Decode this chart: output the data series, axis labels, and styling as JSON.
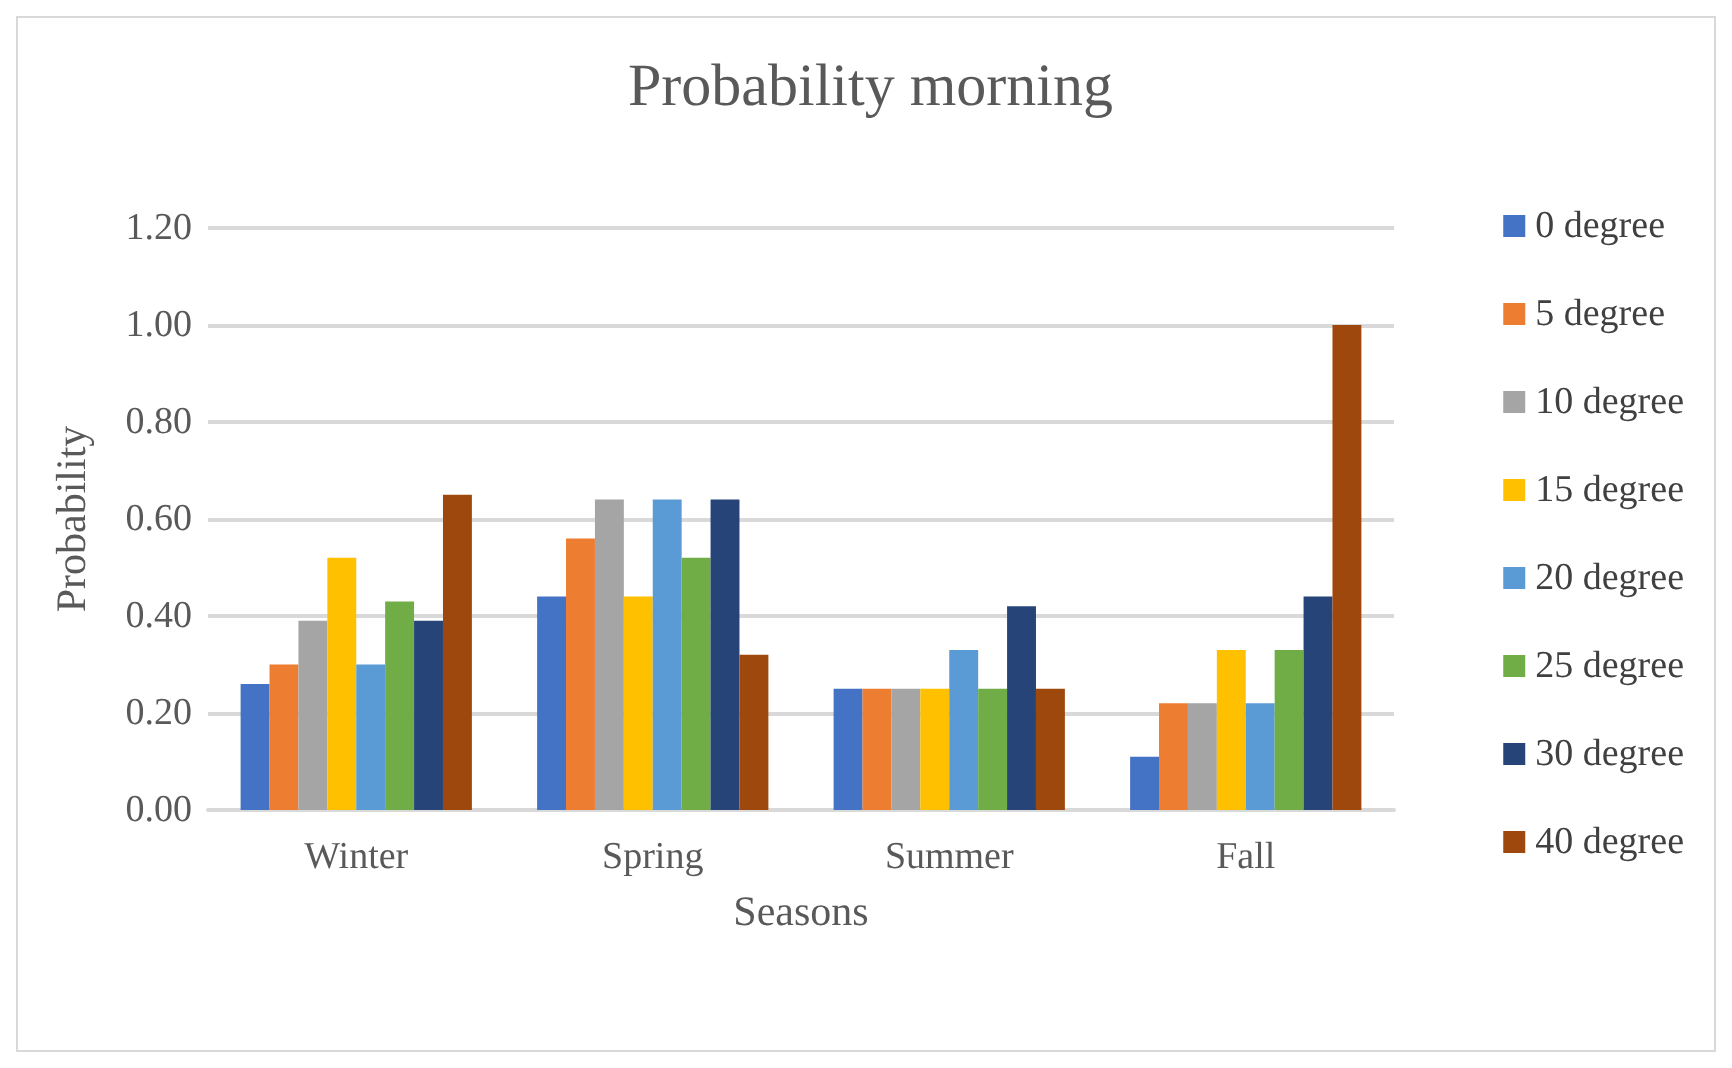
{
  "chart_data": {
    "type": "bar",
    "title": "Probability morning",
    "xlabel": "Seasons",
    "ylabel": "Probability",
    "categories": [
      "Winter",
      "Spring",
      "Summer",
      "Fall"
    ],
    "series": [
      {
        "name": "0 degree",
        "color": "#4472c4",
        "values": [
          0.26,
          0.44,
          0.25,
          0.11
        ]
      },
      {
        "name": "5 degree",
        "color": "#ed7d31",
        "values": [
          0.3,
          0.56,
          0.25,
          0.22
        ]
      },
      {
        "name": "10 degree",
        "color": "#a5a5a5",
        "values": [
          0.39,
          0.64,
          0.25,
          0.22
        ]
      },
      {
        "name": "15 degree",
        "color": "#ffc000",
        "values": [
          0.52,
          0.44,
          0.25,
          0.33
        ]
      },
      {
        "name": "20 degree",
        "color": "#5b9bd5",
        "values": [
          0.3,
          0.64,
          0.33,
          0.22
        ]
      },
      {
        "name": "25 degree",
        "color": "#70ad47",
        "values": [
          0.43,
          0.52,
          0.25,
          0.33
        ]
      },
      {
        "name": "30 degree",
        "color": "#264478",
        "values": [
          0.39,
          0.64,
          0.42,
          0.44
        ]
      },
      {
        "name": "40 degree",
        "color": "#9e480e",
        "values": [
          0.65,
          0.32,
          0.25,
          1.0
        ]
      }
    ],
    "ylim": [
      0,
      1.2
    ],
    "yticks": [
      {
        "value": 0,
        "label": "0.00"
      },
      {
        "value": 0.2,
        "label": "0.20"
      },
      {
        "value": 0.4,
        "label": "0.40"
      },
      {
        "value": 0.6,
        "label": "0.60"
      },
      {
        "value": 0.8,
        "label": "0.80"
      },
      {
        "value": 1,
        "label": "1.00"
      },
      {
        "value": 1.2,
        "label": "1.20"
      }
    ],
    "grid": "y",
    "legend": "right"
  }
}
